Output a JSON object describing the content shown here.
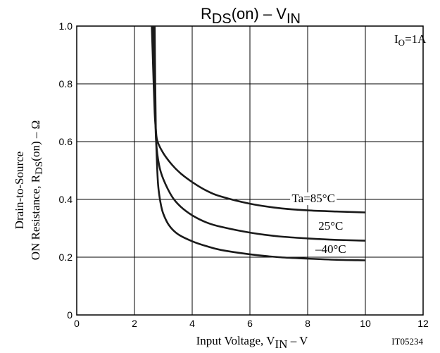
{
  "chart_data": {
    "type": "line",
    "title": {
      "main": "R",
      "main_sub": "DS",
      "mid": "(on)  –  V",
      "end_sub": "IN"
    },
    "ylabel": {
      "line1": "Drain-to-Source",
      "line2_pre": "ON Resistance, R",
      "line2_sub": "DS",
      "line2_post": "(on)  –  Ω"
    },
    "xlabel": {
      "pre": "Input Voltage, V",
      "sub": "IN",
      "post": "  –  V"
    },
    "figure_id": "IT05234",
    "condition": {
      "pre": "I",
      "sub": "O",
      "post": "=1A"
    },
    "xlim": [
      0,
      12
    ],
    "ylim": [
      0,
      1.0
    ],
    "x_ticks": [
      {
        "value": 0,
        "label": "0"
      },
      {
        "value": 2,
        "label": "2"
      },
      {
        "value": 4,
        "label": "4"
      },
      {
        "value": 6,
        "label": "6"
      },
      {
        "value": 8,
        "label": "8"
      },
      {
        "value": 10,
        "label": "10"
      },
      {
        "value": 12,
        "label": "12"
      }
    ],
    "y_ticks": [
      {
        "value": 0,
        "label": "0"
      },
      {
        "value": 0.2,
        "label": "0.2"
      },
      {
        "value": 0.4,
        "label": "0.4"
      },
      {
        "value": 0.6,
        "label": "0.6"
      },
      {
        "value": 0.8,
        "label": "0.8"
      },
      {
        "value": 1.0,
        "label": "1.0"
      }
    ],
    "grid": true,
    "series": [
      {
        "name": "Ta=85°C",
        "label_at": [
          8.2,
          0.39
        ],
        "points": [
          [
            2.6,
            1.0
          ],
          [
            2.65,
            0.85
          ],
          [
            2.7,
            0.7
          ],
          [
            2.75,
            0.63
          ],
          [
            2.8,
            0.6
          ],
          [
            3.0,
            0.56
          ],
          [
            3.3,
            0.52
          ],
          [
            3.6,
            0.49
          ],
          [
            4.0,
            0.46
          ],
          [
            4.5,
            0.43
          ],
          [
            5.0,
            0.41
          ],
          [
            6.0,
            0.385
          ],
          [
            7.0,
            0.37
          ],
          [
            8.0,
            0.362
          ],
          [
            9.0,
            0.358
          ],
          [
            10.0,
            0.355
          ]
        ]
      },
      {
        "name": "25°C",
        "label_at": [
          8.8,
          0.295
        ],
        "points": [
          [
            2.65,
            1.0
          ],
          [
            2.68,
            0.85
          ],
          [
            2.72,
            0.7
          ],
          [
            2.75,
            0.6
          ],
          [
            2.85,
            0.52
          ],
          [
            3.0,
            0.47
          ],
          [
            3.3,
            0.41
          ],
          [
            3.6,
            0.375
          ],
          [
            4.0,
            0.345
          ],
          [
            4.5,
            0.32
          ],
          [
            5.0,
            0.305
          ],
          [
            6.0,
            0.285
          ],
          [
            7.0,
            0.272
          ],
          [
            8.0,
            0.265
          ],
          [
            9.0,
            0.26
          ],
          [
            10.0,
            0.257
          ]
        ]
      },
      {
        "name": "–40°C",
        "label_at": [
          8.8,
          0.215
        ],
        "points": [
          [
            2.7,
            1.0
          ],
          [
            2.72,
            0.8
          ],
          [
            2.74,
            0.65
          ],
          [
            2.77,
            0.55
          ],
          [
            2.82,
            0.45
          ],
          [
            2.9,
            0.39
          ],
          [
            3.0,
            0.35
          ],
          [
            3.2,
            0.31
          ],
          [
            3.5,
            0.28
          ],
          [
            4.0,
            0.255
          ],
          [
            4.5,
            0.238
          ],
          [
            5.0,
            0.225
          ],
          [
            6.0,
            0.21
          ],
          [
            7.0,
            0.2
          ],
          [
            8.0,
            0.195
          ],
          [
            9.0,
            0.191
          ],
          [
            10.0,
            0.189
          ]
        ]
      }
    ]
  }
}
